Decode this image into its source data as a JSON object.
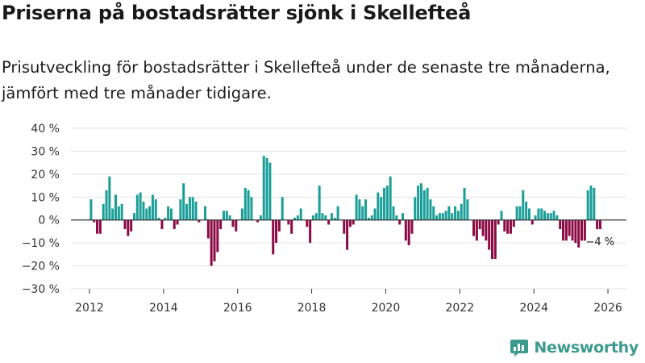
{
  "title": "Priserna på bostadsrätter sjönk i Skellefteå",
  "subtitle": "Prisutveckling för bostadsrätter i Skellefteå under de senaste tre månaderna, jämfört med tre månader tidigare.",
  "brand": "Newsworthy",
  "colors": {
    "positive": "#1a9e97",
    "negative": "#8b0a45",
    "brand": "#3d9a8f"
  },
  "chart_data": {
    "type": "bar",
    "title": "Priserna på bostadsrätter sjönk i Skellefteå",
    "xlabel": "",
    "ylabel": "",
    "x_start": "2012-01",
    "x_step": "1 month",
    "xlim": [
      2011.5,
      2026.5
    ],
    "ylim": [
      -30,
      40
    ],
    "y_ticks": [
      40,
      30,
      20,
      10,
      0,
      -10,
      -20,
      -30
    ],
    "y_tick_labels": [
      "40 %",
      "30 %",
      "20 %",
      "10 %",
      "0 %",
      "−10 %",
      "−20 %",
      "−30 %"
    ],
    "x_ticks": [
      2012,
      2014,
      2016,
      2018,
      2020,
      2022,
      2024,
      2026
    ],
    "x_tick_labels": [
      "2012",
      "2014",
      "2016",
      "2018",
      "2020",
      "2022",
      "2024",
      "2026"
    ],
    "values": [
      9,
      -1,
      -6,
      -6,
      7,
      13,
      19,
      5,
      11,
      6,
      7,
      -4,
      -7,
      -5,
      3,
      11,
      12,
      8,
      5,
      6,
      11,
      9,
      1,
      -4,
      1,
      6,
      5,
      -4,
      -2,
      9,
      16,
      7,
      10,
      10,
      8,
      -1,
      0,
      6,
      -8,
      -20,
      -18,
      -14,
      -4,
      4,
      4,
      2,
      -3,
      -5,
      0,
      5,
      14,
      13,
      10,
      0,
      -1,
      2,
      28,
      27,
      25,
      -15,
      -10,
      -5,
      10,
      0,
      -2,
      -6,
      1,
      2,
      5,
      0,
      -3,
      -10,
      2,
      3,
      15,
      3,
      2,
      -2,
      3,
      1,
      6,
      0,
      -6,
      -13,
      -3,
      -2,
      11,
      9,
      6,
      9,
      1,
      2,
      5,
      12,
      10,
      14,
      15,
      19,
      6,
      2,
      -2,
      3,
      -9,
      -11,
      -6,
      10,
      15,
      16,
      13,
      14,
      9,
      6,
      2,
      3,
      3,
      4,
      6,
      3,
      6,
      4,
      7,
      14,
      9,
      0,
      -7,
      -9,
      -4,
      -7,
      -9,
      -13,
      -17,
      -17,
      -2,
      4,
      -5,
      -6,
      -6,
      -3,
      6,
      6,
      13,
      8,
      5,
      -2,
      2,
      5,
      5,
      4,
      3,
      3,
      4,
      2,
      -4,
      -9,
      -9,
      -7,
      -9,
      -10,
      -12,
      -9,
      -9,
      13,
      15,
      14,
      -4,
      -4
    ],
    "annotations": [
      {
        "label": "−4 %"
      }
    ]
  }
}
